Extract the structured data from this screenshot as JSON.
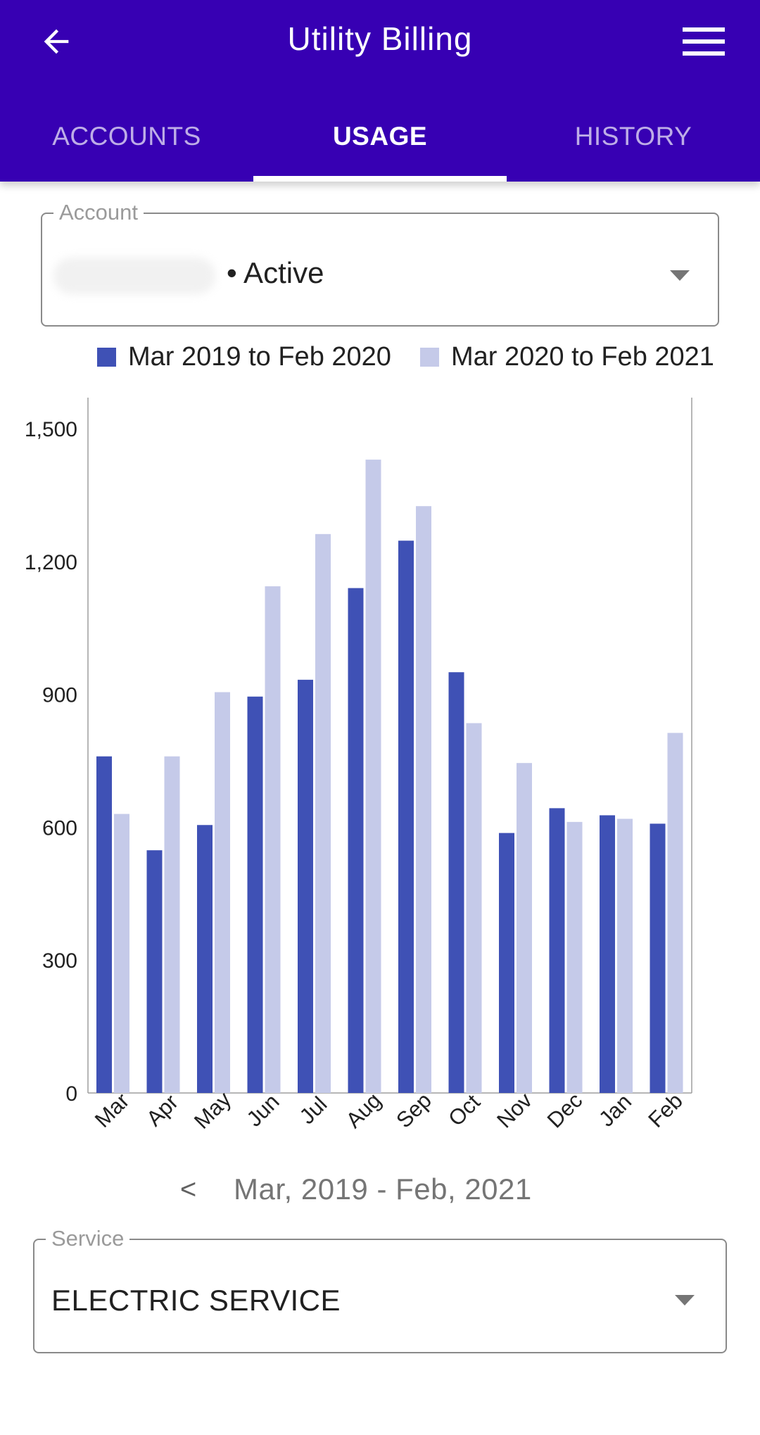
{
  "app": {
    "title": "Utility Billing",
    "colors": {
      "appbar": "#3700b3",
      "series_dark": "#3f51b5",
      "series_light": "#c5cae9"
    },
    "icons": {
      "back": "arrow-left-icon",
      "menu": "hamburger-menu-icon"
    }
  },
  "tabs": [
    {
      "label": "ACCOUNTS",
      "active": false
    },
    {
      "label": "USAGE",
      "active": true
    },
    {
      "label": "HISTORY",
      "active": false
    }
  ],
  "account": {
    "label": "Account",
    "value": "• Active"
  },
  "chart_data": {
    "type": "bar",
    "categories": [
      "Mar",
      "Apr",
      "May",
      "Jun",
      "Jul",
      "Aug",
      "Sep",
      "Oct",
      "Nov",
      "Dec",
      "Jan",
      "Feb"
    ],
    "series": [
      {
        "name": "Mar 2019 to Feb 2020",
        "color": "#3f51b5",
        "values": [
          760,
          548,
          605,
          895,
          933,
          1140,
          1247,
          950,
          587,
          643,
          627,
          608
        ]
      },
      {
        "name": "Mar 2020 to Feb 2021",
        "color": "#c5cae9",
        "values": [
          630,
          760,
          905,
          1144,
          1262,
          1430,
          1325,
          835,
          745,
          612,
          619,
          813
        ]
      }
    ],
    "y_ticks": [
      "0",
      "300",
      "600",
      "900",
      "1,200",
      "1,500"
    ],
    "ylim": [
      0,
      1570
    ],
    "xlabel": "",
    "ylabel": "",
    "legend_position": "top",
    "grid": false
  },
  "period": {
    "prev_label": "<",
    "label": "Mar, 2019 - Feb, 2021"
  },
  "service": {
    "label": "Service",
    "value": "ELECTRIC SERVICE"
  }
}
